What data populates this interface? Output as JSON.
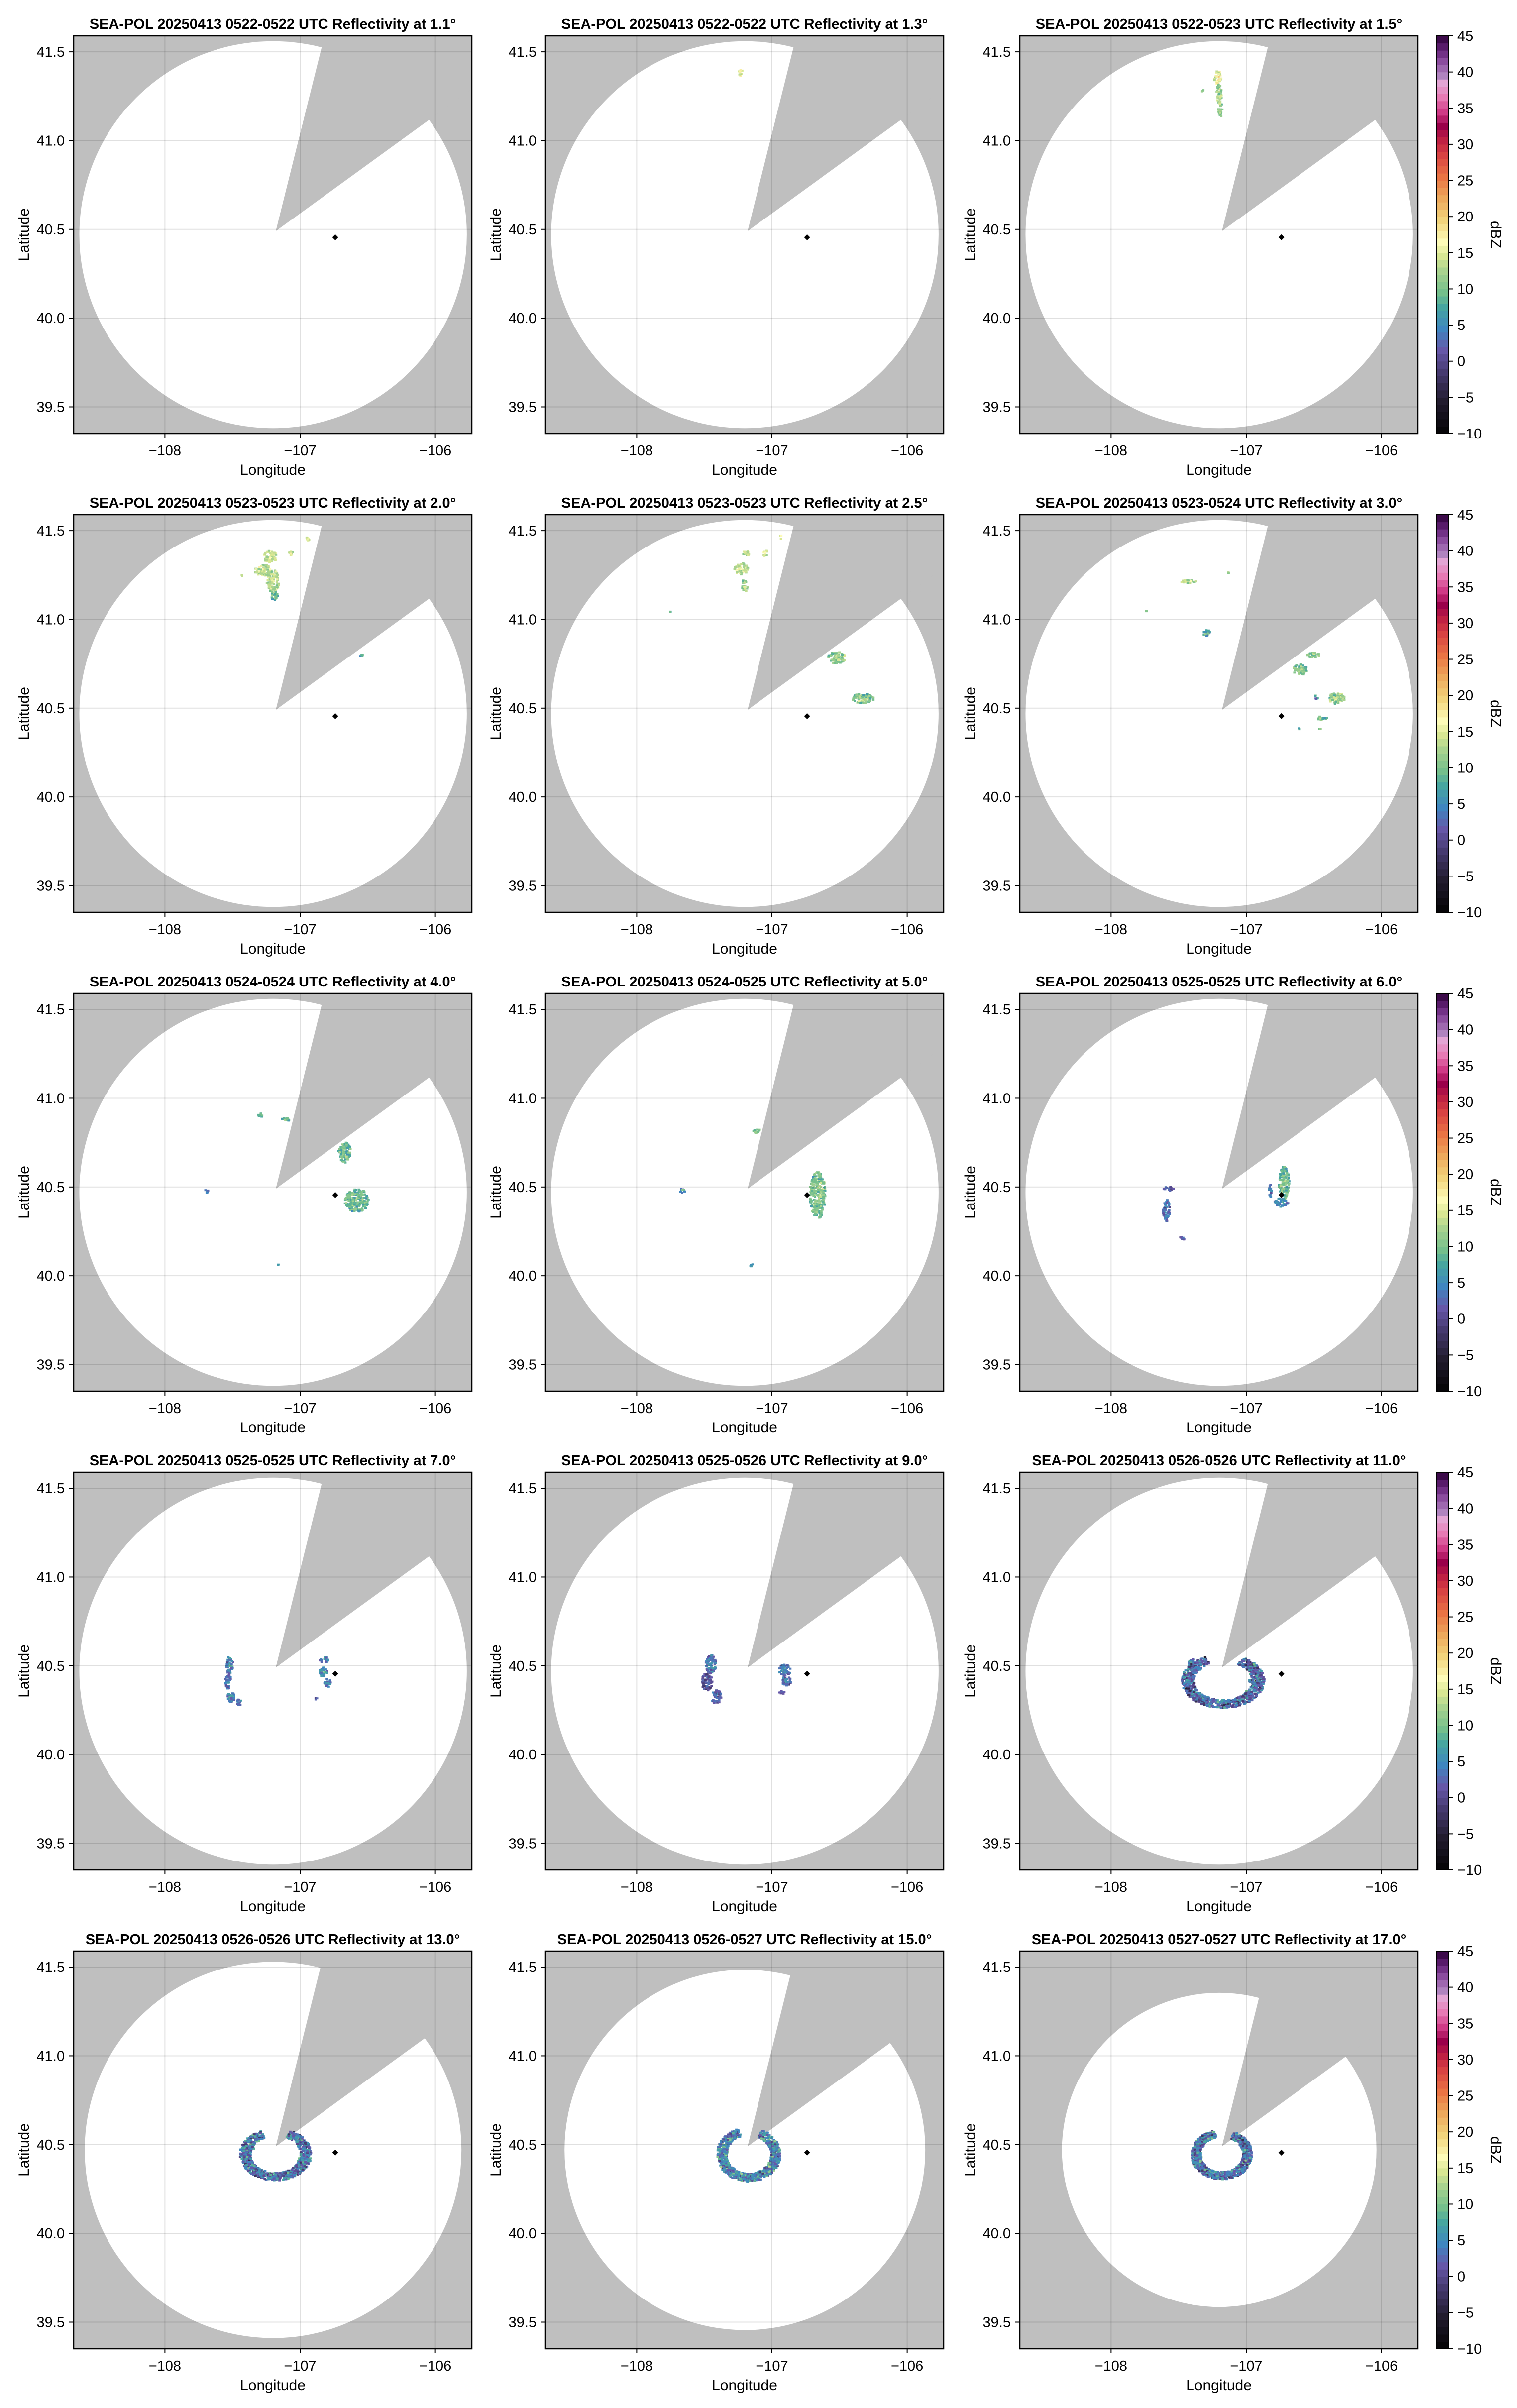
{
  "chart_data": {
    "type": "heatmap",
    "layout": "5x3 grid of radar PPI panels",
    "xlabel": "Longitude",
    "ylabel": "Latitude",
    "xlim": [
      -108.675,
      -105.73
    ],
    "ylim": [
      39.35,
      41.59
    ],
    "xticks": [
      -108,
      -107,
      -106
    ],
    "xtick_labels": [
      "−108",
      "−107",
      "−106"
    ],
    "yticks": [
      41.5,
      41.0,
      40.5,
      40.0,
      39.5
    ],
    "ytick_labels": [
      "41.5",
      "41.0",
      "40.5",
      "40.0",
      "39.5"
    ],
    "grid": true,
    "no_coverage_color": "#bfbfbf",
    "coverage_color": "#ffffff",
    "radar_center": [
      -107.2,
      40.47
    ],
    "blocked_sector": {
      "vertex": [
        -107.18,
        40.49
      ],
      "azimuth_deg": [
        14,
        54
      ]
    },
    "site_marker": {
      "lon": -106.74,
      "lat": 40.455,
      "shape": "diamond",
      "color": "#000000"
    },
    "colorbar": {
      "label": "dBZ",
      "range": [
        -10,
        45
      ],
      "ticks": [
        45,
        40,
        35,
        30,
        25,
        20,
        15,
        10,
        5,
        0,
        -5,
        -10
      ],
      "tick_labels": [
        "45",
        "40",
        "35",
        "30",
        "25",
        "20",
        "15",
        "10",
        "5",
        "0",
        "−5",
        "−10"
      ],
      "stops": [
        [
          -10,
          "#000000"
        ],
        [
          -5,
          "#221c2e"
        ],
        [
          -1,
          "#463a70"
        ],
        [
          2,
          "#6657a8"
        ],
        [
          5,
          "#3f86c0"
        ],
        [
          8,
          "#47a6a0"
        ],
        [
          10,
          "#74bf8c"
        ],
        [
          13,
          "#a9d38f"
        ],
        [
          15,
          "#d8e793"
        ],
        [
          17,
          "#fdfbb8"
        ],
        [
          20,
          "#f2d47c"
        ],
        [
          23,
          "#eda95c"
        ],
        [
          26,
          "#ea7444"
        ],
        [
          29,
          "#d84343"
        ],
        [
          31,
          "#bf2143"
        ],
        [
          33,
          "#9a004a"
        ],
        [
          35,
          "#cf3a86"
        ],
        [
          37,
          "#e77ab4"
        ],
        [
          39,
          "#e3a5d4"
        ],
        [
          40,
          "#b084bf"
        ],
        [
          42,
          "#8b4c9e"
        ],
        [
          43.5,
          "#66247a"
        ],
        [
          45,
          "#3c0a4a"
        ]
      ]
    },
    "panels": [
      {
        "title": "SEA-POL 20250413 0522-0522 UTC Reflectivity at 1.1°",
        "elevation_deg": 1.1,
        "range_lat_deg": 1.09,
        "echoes": []
      },
      {
        "title": "SEA-POL 20250413 0522-0522 UTC Reflectivity at 1.3°",
        "elevation_deg": 1.3,
        "range_lat_deg": 1.09,
        "echoes": [
          [
            -107.24,
            41.39,
            0.01,
            0.015,
            17
          ]
        ]
      },
      {
        "title": "SEA-POL 20250413 0522-0523 UTC Reflectivity at 1.5°",
        "elevation_deg": 1.5,
        "range_lat_deg": 1.09,
        "echoes": [
          [
            -107.22,
            41.36,
            0.02,
            0.03,
            17
          ],
          [
            -107.21,
            41.27,
            0.015,
            0.04,
            14
          ],
          [
            -107.2,
            41.18,
            0.012,
            0.03,
            13
          ],
          [
            -107.33,
            41.28,
            0.005,
            0.01,
            13
          ]
        ]
      },
      {
        "title": "SEA-POL 20250413 0523-0523 UTC Reflectivity at 2.0°",
        "elevation_deg": 2.0,
        "range_lat_deg": 1.09,
        "echoes": [
          [
            -107.23,
            41.36,
            0.04,
            0.025,
            16
          ],
          [
            -107.28,
            41.28,
            0.05,
            0.025,
            15
          ],
          [
            -107.21,
            41.22,
            0.035,
            0.05,
            15
          ],
          [
            -107.2,
            41.14,
            0.02,
            0.02,
            11
          ],
          [
            -106.955,
            41.46,
            0.01,
            0.012,
            17
          ],
          [
            -107.077,
            41.38,
            0.012,
            0.012,
            16
          ],
          [
            -107.44,
            41.25,
            0.003,
            0.006,
            15
          ],
          [
            -106.56,
            40.805,
            0.015,
            0.005,
            10
          ]
        ]
      },
      {
        "title": "SEA-POL 20250413 0523-0523 UTC Reflectivity at 2.5°",
        "elevation_deg": 2.5,
        "range_lat_deg": 1.09,
        "echoes": [
          [
            -107.237,
            41.29,
            0.04,
            0.025,
            15
          ],
          [
            -107.2,
            41.38,
            0.02,
            0.012,
            15
          ],
          [
            -107.06,
            41.38,
            0.012,
            0.015,
            16
          ],
          [
            -107.21,
            41.18,
            0.02,
            0.012,
            13
          ],
          [
            -107.22,
            41.22,
            0.015,
            0.01,
            12
          ],
          [
            -106.94,
            41.47,
            0.006,
            0.008,
            18
          ],
          [
            -106.53,
            40.79,
            0.05,
            0.025,
            13
          ],
          [
            -106.335,
            40.56,
            0.06,
            0.022,
            12
          ],
          [
            -107.76,
            41.05,
            0.004,
            0.004,
            10
          ]
        ]
      },
      {
        "title": "SEA-POL 20250413 0523-0524 UTC Reflectivity at 3.0°",
        "elevation_deg": 3.0,
        "range_lat_deg": 1.09,
        "echoes": [
          [
            -107.445,
            41.22,
            0.05,
            0.008,
            14
          ],
          [
            -107.145,
            41.27,
            0.006,
            0.006,
            13
          ],
          [
            -107.75,
            41.05,
            0.004,
            0.003,
            12
          ],
          [
            -107.305,
            40.93,
            0.02,
            0.015,
            9
          ],
          [
            -106.515,
            40.805,
            0.035,
            0.01,
            13
          ],
          [
            -106.61,
            40.72,
            0.04,
            0.025,
            12
          ],
          [
            -106.34,
            40.56,
            0.045,
            0.025,
            14
          ],
          [
            -106.49,
            40.57,
            0.01,
            0.01,
            9
          ],
          [
            -106.45,
            40.45,
            0.03,
            0.01,
            11
          ],
          [
            -106.62,
            40.39,
            0.005,
            0.003,
            9
          ],
          [
            -106.47,
            40.39,
            0.01,
            0.003,
            10
          ]
        ]
      },
      {
        "title": "SEA-POL 20250413 0524-0524 UTC Reflectivity at 4.0°",
        "elevation_deg": 4.0,
        "range_lat_deg": 1.09,
        "echoes": [
          [
            -106.59,
            40.43,
            0.07,
            0.05,
            11
          ],
          [
            -106.68,
            40.7,
            0.035,
            0.045,
            11
          ],
          [
            -107.12,
            40.885,
            0.025,
            0.01,
            11
          ],
          [
            -107.3,
            40.91,
            0.015,
            0.01,
            10
          ],
          [
            -107.7,
            40.48,
            0.01,
            0.008,
            7
          ],
          [
            -107.17,
            40.065,
            0.004,
            0.003,
            8
          ]
        ]
      },
      {
        "title": "SEA-POL 20250413 0524-0525 UTC Reflectivity at 5.0°",
        "elevation_deg": 5.0,
        "range_lat_deg": 1.09,
        "echoes": [
          [
            -106.67,
            40.46,
            0.045,
            0.1,
            12
          ],
          [
            -107.12,
            40.82,
            0.02,
            0.01,
            12
          ],
          [
            -107.67,
            40.485,
            0.015,
            0.01,
            7
          ],
          [
            -107.16,
            40.07,
            0.008,
            0.01,
            8
          ]
        ]
      },
      {
        "title": "SEA-POL 20250413 0525-0525 UTC Reflectivity at 6.0°",
        "elevation_deg": 6.0,
        "range_lat_deg": 1.09,
        "echoes": [
          [
            -106.73,
            40.53,
            0.03,
            0.07,
            11
          ],
          [
            -106.75,
            40.42,
            0.04,
            0.02,
            7
          ],
          [
            -107.6,
            40.37,
            0.02,
            0.05,
            5
          ],
          [
            -107.58,
            40.495,
            0.03,
            0.01,
            4
          ],
          [
            -107.48,
            40.22,
            0.015,
            0.01,
            4
          ],
          [
            -106.83,
            40.48,
            0.008,
            0.03,
            5
          ]
        ]
      },
      {
        "title": "SEA-POL 20250413 0525-0525 UTC Reflectivity at 7.0°",
        "elevation_deg": 7.0,
        "range_lat_deg": 1.09,
        "echoes": [
          [
            -107.53,
            40.51,
            0.02,
            0.04,
            6
          ],
          [
            -107.54,
            40.415,
            0.02,
            0.03,
            5
          ],
          [
            -107.52,
            40.33,
            0.02,
            0.025,
            6
          ],
          [
            -107.46,
            40.3,
            0.015,
            0.015,
            5
          ],
          [
            -106.83,
            40.54,
            0.025,
            0.015,
            6
          ],
          [
            -106.84,
            40.47,
            0.025,
            0.02,
            7
          ],
          [
            -106.81,
            40.41,
            0.02,
            0.02,
            6
          ],
          [
            -106.89,
            40.32,
            0.01,
            0.005,
            4
          ]
        ]
      },
      {
        "title": "SEA-POL 20250413 0525-0526 UTC Reflectivity at 9.0°",
        "elevation_deg": 9.0,
        "range_lat_deg": 1.09,
        "echoes": [
          [
            -107.46,
            40.514,
            0.03,
            0.04,
            6
          ],
          [
            -107.49,
            40.415,
            0.03,
            0.04,
            3
          ],
          [
            -107.42,
            40.33,
            0.03,
            0.03,
            4
          ],
          [
            -106.915,
            40.48,
            0.035,
            0.025,
            6
          ],
          [
            -106.905,
            40.42,
            0.03,
            0.02,
            5
          ],
          [
            -106.93,
            40.355,
            0.02,
            0.008,
            4
          ]
        ]
      },
      {
        "title": "SEA-POL 20250413 0526-0526 UTC Reflectivity at 11.0°",
        "elevation_deg": 11.0,
        "range_lat_deg": 1.09,
        "echoes": [
          [
            -107.41,
            40.507,
            0.02,
            0.03,
            6
          ],
          [
            -106.96,
            40.42,
            0.02,
            0.01,
            8
          ],
          [
            -107.0,
            40.35,
            0.015,
            0.015,
            9
          ]
        ],
        "arc": {
          "center": [
            -107.18,
            40.42
          ],
          "rlon": 0.26,
          "rlat": 0.13,
          "az": [
            30,
            335
          ],
          "dbz": 3
        }
      },
      {
        "title": "SEA-POL 20250413 0526-0526 UTC Reflectivity at 13.0°",
        "elevation_deg": 13.0,
        "range_lat_deg": 1.06,
        "echoes": [
          [
            -107.36,
            40.5,
            0.015,
            0.02,
            10
          ],
          [
            -107.0,
            40.42,
            0.02,
            0.012,
            12
          ]
        ],
        "arc": {
          "center": [
            -107.19,
            40.45
          ],
          "rlon": 0.225,
          "rlat": 0.125,
          "az": [
            25,
            335
          ],
          "dbz": 4
        }
      },
      {
        "title": "SEA-POL 20250413 0526-0527 UTC Reflectivity at 15.0°",
        "elevation_deg": 15.0,
        "range_lat_deg": 1.015,
        "echoes": [
          [
            -107.35,
            40.48,
            0.015,
            0.02,
            11
          ],
          [
            -106.99,
            40.43,
            0.02,
            0.015,
            13
          ]
        ],
        "arc": {
          "center": [
            -107.18,
            40.45
          ],
          "rlon": 0.2,
          "rlat": 0.13,
          "az": [
            25,
            340
          ],
          "dbz": 5
        }
      },
      {
        "title": "SEA-POL 20250413 0527-0527 UTC Reflectivity at 17.0°",
        "elevation_deg": 17.0,
        "range_lat_deg": 0.885,
        "echoes": [
          [
            -107.01,
            40.42,
            0.02,
            0.01,
            13
          ],
          [
            -107.35,
            40.43,
            0.01,
            0.02,
            10
          ]
        ],
        "arc": {
          "center": [
            -107.19,
            40.45
          ],
          "rlon": 0.19,
          "rlat": 0.12,
          "az": [
            25,
            345
          ],
          "dbz": 4
        }
      }
    ]
  }
}
